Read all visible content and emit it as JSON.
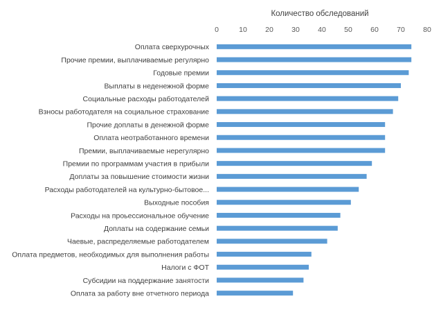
{
  "chart_data": {
    "type": "bar",
    "orientation": "horizontal",
    "title": "",
    "xlabel": "Количество обследований",
    "xaxis_position": "top",
    "ylabel": "",
    "xlim": [
      0,
      80
    ],
    "xticks": [
      0,
      10,
      20,
      30,
      40,
      50,
      60,
      70,
      80
    ],
    "grid": false,
    "legend": "none",
    "bar_color": "#5B9BD5",
    "categories": [
      "Оплата сверхурочных",
      "Прочие премии, выплачиваемые регулярно",
      "Годовые премии",
      "Выплаты в неденежной форме",
      "Социальные расходы работодателей",
      "Взносы работодателя на социальное страхование",
      "Прочие доплаты в денежной форме",
      "Оплата неотработанного времени",
      "Премии, выплачиваемые нерегулярно",
      "Премии по программам участия в прибыли",
      "Доплаты за повышение стоимости жизни",
      "Расходы работодателей на культурно-бытовое...",
      "Выходные пособия",
      "Расходы на проьессиональное обучение",
      "Доплаты на содержание семьи",
      "Чаевые, распределяемые работодателем",
      "Оплата предметов, необходимых для выполнения работы",
      "Налоги с ФОТ",
      "Субсидии на поддержание занятости",
      "Оплата за работу вне отчетного периода"
    ],
    "values": [
      74,
      74,
      73,
      70,
      69,
      67,
      64,
      64,
      64,
      59,
      57,
      54,
      51,
      47,
      46,
      42,
      36,
      35,
      33,
      29
    ]
  }
}
